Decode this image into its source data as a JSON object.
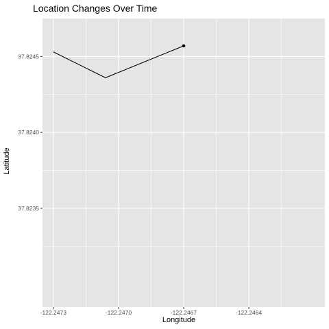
{
  "chart_data": {
    "type": "line",
    "title": "Location Changes Over Time",
    "xlabel": "Longitude",
    "ylabel": "Latitude",
    "xlim": [
      -122.24735,
      -122.24605
    ],
    "ylim": [
      37.82285,
      37.82475
    ],
    "x_ticks": [
      -122.2473,
      -122.247,
      -122.2467,
      -122.2464
    ],
    "x_tick_labels": [
      "-122.2473",
      "-122.2470",
      "-122.2467",
      "-122.2464"
    ],
    "y_ticks": [
      37.8235,
      37.824,
      37.8245
    ],
    "y_tick_labels": [
      "37.8235",
      "37.8240",
      "37.8245"
    ],
    "grid": true,
    "series": [
      {
        "x": [
          -122.2473,
          -122.24706,
          -122.2467
        ],
        "y": [
          37.82453,
          37.82436,
          37.82457
        ]
      }
    ],
    "end_point": {
      "x": -122.2467,
      "y": 37.82457
    },
    "colors": {
      "panel_background": "#e5e5e5",
      "grid_line": "#ffffff",
      "line": "#000000",
      "tick_label": "#4d4d4d"
    }
  }
}
